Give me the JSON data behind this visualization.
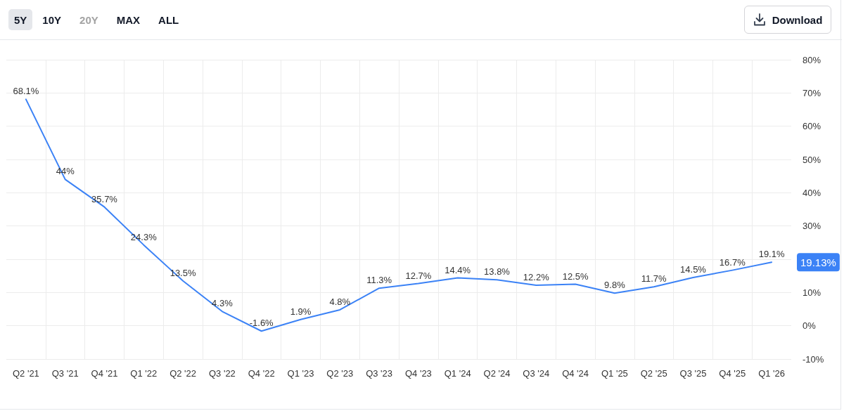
{
  "chart_data": {
    "type": "line",
    "categories": [
      "Q2 '21",
      "Q3 '21",
      "Q4 '21",
      "Q1 '22",
      "Q2 '22",
      "Q3 '22",
      "Q4 '22",
      "Q1 '23",
      "Q2 '23",
      "Q3 '23",
      "Q4 '23",
      "Q1 '24",
      "Q2 '24",
      "Q3 '24",
      "Q4 '24",
      "Q1 '25",
      "Q2 '25",
      "Q3 '25",
      "Q4 '25",
      "Q1 '26"
    ],
    "series": [
      {
        "color": "#3b82f6",
        "values": [
          68.1,
          44,
          35.7,
          24.3,
          13.5,
          4.3,
          -1.6,
          1.9,
          4.8,
          11.3,
          12.7,
          14.4,
          13.8,
          12.2,
          12.5,
          9.8,
          11.7,
          14.5,
          16.7,
          19.1
        ],
        "value_labels": [
          "68.1%",
          "44%",
          "35.7%",
          "24.3%",
          "13.5%",
          "4.3%",
          "-1.6%",
          "1.9%",
          "4.8%",
          "11.3%",
          "12.7%",
          "14.4%",
          "13.8%",
          "12.2%",
          "12.5%",
          "9.8%",
          "11.7%",
          "14.5%",
          "16.7%",
          "19.1%"
        ]
      }
    ],
    "ylim": [
      -10,
      80
    ],
    "yticks": [
      {
        "value": -10,
        "label": "-10%"
      },
      {
        "value": 0,
        "label": "0%"
      },
      {
        "value": 10,
        "label": "10%"
      },
      {
        "value": 20,
        "label": null
      },
      {
        "value": 30,
        "label": "30%"
      },
      {
        "value": 40,
        "label": "40%"
      },
      {
        "value": 50,
        "label": "50%"
      },
      {
        "value": 60,
        "label": "60%"
      },
      {
        "value": 70,
        "label": "70%"
      },
      {
        "value": 80,
        "label": "80%"
      }
    ],
    "grid": true,
    "marker": "none",
    "line_style": "solid",
    "annotations": [
      "5Y",
      "10Y",
      "20Y",
      "MAX",
      "ALL",
      "Download",
      "19.13%"
    ]
  }
}
